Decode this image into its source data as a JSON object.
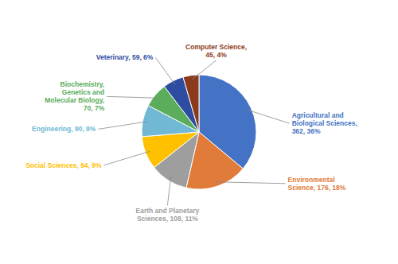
{
  "chart_data": {
    "type": "pie",
    "categories": [
      "Agricultural and\nBiological Sciences,\n362, 36%",
      "Environmental\nScience, 176, 18%",
      "Earth and Planetary\nSciences, 108, 11%",
      "Social Sciences, 94, 9%",
      "Engineering, 90, 9%",
      "Biochemistry,\nGenetics and\nMolecular Biology,\n70, 7%",
      "Veterinary, 59, 6%",
      "Computer Science,\n45, 4%"
    ],
    "values": [
      362,
      176,
      108,
      94,
      90,
      70,
      59,
      45
    ],
    "colors": [
      "#4472C4",
      "#E07B39",
      "#9E9E9E",
      "#FFC000",
      "#70B8D4",
      "#5BAD5B",
      "#2E4DA0",
      "#8B3A1A"
    ]
  }
}
